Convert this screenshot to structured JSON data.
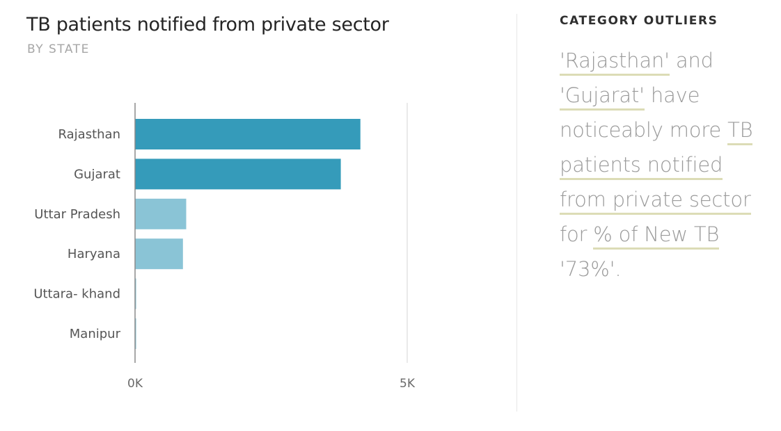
{
  "chart_data": {
    "type": "bar",
    "orientation": "horizontal",
    "title": "TB patients notified from private sector",
    "subtitle": "BY STATE",
    "categories": [
      "Rajasthan",
      "Gujarat",
      "Uttar Pradesh",
      "Haryana",
      "Uttara- khand",
      "Manipur"
    ],
    "values": [
      4140,
      3780,
      940,
      880,
      20,
      20
    ],
    "xlim": [
      0,
      5000
    ],
    "xticks": [
      0,
      5000
    ],
    "xtick_labels": [
      "0K",
      "5K"
    ],
    "grid": true,
    "colors": [
      "#359bba",
      "#359bba",
      "#8ac4d6",
      "#8ac4d6",
      "#8ac4d6",
      "#8ac4d6"
    ]
  },
  "insights": {
    "heading": "CATEGORY OUTLIERS",
    "parts": [
      "'Rajasthan'",
      " and ",
      "'Gujarat'",
      " have noticeably more ",
      "TB patients notified from private sector",
      " for ",
      "% of New TB",
      " '73%'."
    ]
  }
}
